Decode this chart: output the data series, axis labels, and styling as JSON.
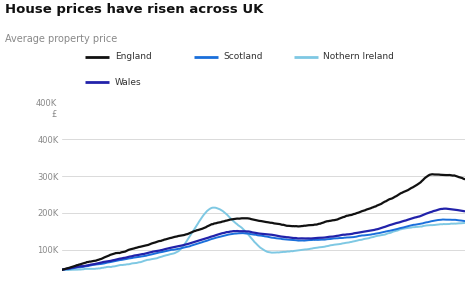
{
  "title": "House prices have risen across UK",
  "subtitle": "Average property price",
  "background_color": "#ffffff",
  "ylim": [
    40000,
    440000
  ],
  "yticks": [
    100000,
    200000,
    300000,
    400000
  ],
  "ytick_labels": [
    "100K",
    "200K",
    "300K",
    "400K"
  ],
  "figsize": [
    4.74,
    2.83
  ],
  "dpi": 100,
  "legend": [
    {
      "label": "England",
      "color": "#111111",
      "lw": 2.0,
      "row": 0,
      "col": 0
    },
    {
      "label": "Scotland",
      "color": "#1a6fdb",
      "lw": 1.5,
      "row": 0,
      "col": 1
    },
    {
      "label": "Nothern Ireland",
      "color": "#7ec8e3",
      "lw": 1.5,
      "row": 0,
      "col": 2
    },
    {
      "label": "Wales",
      "color": "#2222aa",
      "lw": 2.0,
      "row": 1,
      "col": 0
    }
  ],
  "series": {
    "England": {
      "color": "#111111",
      "lw": 1.6,
      "keypoints_x": [
        0,
        0.3,
        0.45,
        0.52,
        0.58,
        0.72,
        0.88,
        0.92,
        1.0
      ],
      "keypoints_y": [
        45000,
        140000,
        185000,
        172000,
        163000,
        195000,
        275000,
        305000,
        292000
      ],
      "noise_scale": 2200
    },
    "Scotland": {
      "color": "#1a6fdb",
      "lw": 1.4,
      "keypoints_x": [
        0,
        0.3,
        0.45,
        0.52,
        0.6,
        0.75,
        0.88,
        0.95,
        1.0
      ],
      "keypoints_y": [
        45000,
        105000,
        145000,
        133000,
        125000,
        138000,
        168000,
        182000,
        178000
      ],
      "noise_scale": 1400
    },
    "Nothern Ireland": {
      "color": "#7ec8e3",
      "lw": 1.4,
      "keypoints_x": [
        0,
        0.28,
        0.38,
        0.44,
        0.52,
        0.6,
        0.75,
        0.88,
        1.0
      ],
      "keypoints_y": [
        45000,
        90000,
        215000,
        165000,
        92000,
        100000,
        128000,
        162000,
        172000
      ],
      "noise_scale": 2000
    },
    "Wales": {
      "color": "#2222aa",
      "lw": 1.6,
      "keypoints_x": [
        0,
        0.3,
        0.44,
        0.52,
        0.6,
        0.75,
        0.88,
        0.95,
        1.0
      ],
      "keypoints_y": [
        45000,
        112000,
        150000,
        140000,
        130000,
        148000,
        188000,
        210000,
        205000
      ],
      "noise_scale": 1400
    }
  }
}
